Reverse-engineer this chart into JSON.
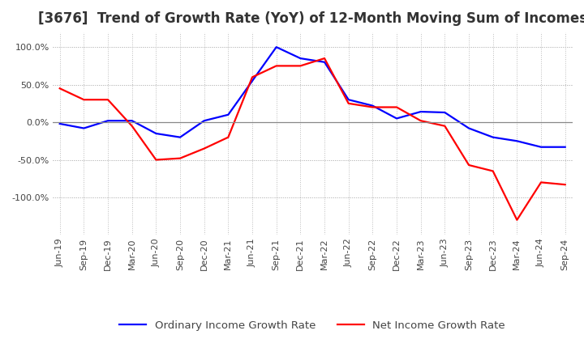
{
  "title": "[3676]  Trend of Growth Rate (YoY) of 12-Month Moving Sum of Incomes",
  "ylim": [
    -150,
    120
  ],
  "yticks": [
    100.0,
    50.0,
    0.0,
    -50.0,
    -100.0
  ],
  "ytick_labels": [
    "100.0%",
    "50.0%",
    "0.0%",
    "-50.0%",
    "-100.0%"
  ],
  "x_labels": [
    "Jun-19",
    "Sep-19",
    "Dec-19",
    "Mar-20",
    "Jun-20",
    "Sep-20",
    "Dec-20",
    "Mar-21",
    "Jun-21",
    "Sep-21",
    "Dec-21",
    "Mar-22",
    "Jun-22",
    "Sep-22",
    "Dec-22",
    "Mar-23",
    "Jun-23",
    "Sep-23",
    "Dec-23",
    "Mar-24",
    "Jun-24",
    "Sep-24"
  ],
  "ordinary_income": [
    -2,
    -8,
    2,
    2,
    -15,
    -20,
    2,
    10,
    55,
    100,
    85,
    80,
    30,
    22,
    5,
    14,
    13,
    -8,
    -20,
    -25,
    -33,
    -33
  ],
  "net_income": [
    45,
    30,
    30,
    -5,
    -50,
    -48,
    -35,
    -20,
    60,
    75,
    75,
    85,
    25,
    20,
    20,
    2,
    -5,
    -57,
    -65,
    -130,
    -80,
    -83
  ],
  "ordinary_color": "#0000ff",
  "net_color": "#ff0000",
  "grid_color": "#bbbbbb",
  "background_color": "#ffffff",
  "legend_ordinary": "Ordinary Income Growth Rate",
  "legend_net": "Net Income Growth Rate",
  "title_fontsize": 12,
  "tick_fontsize": 8,
  "legend_fontsize": 9.5
}
